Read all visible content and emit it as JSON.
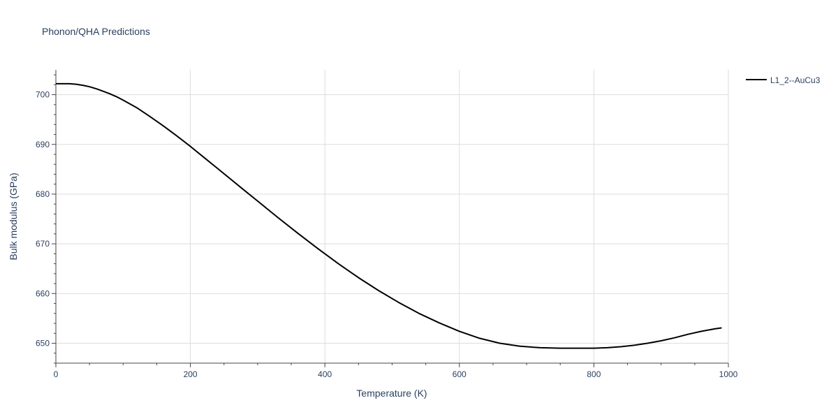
{
  "chart_data": {
    "type": "line",
    "title": "Phonon/QHA Predictions",
    "xlabel": "Temperature (K)",
    "ylabel": "Bulk modulus (GPa)",
    "xlim": [
      0,
      1000
    ],
    "ylim": [
      646,
      705
    ],
    "x_ticks": [
      0,
      200,
      400,
      600,
      800,
      1000
    ],
    "y_ticks": [
      650,
      660,
      670,
      680,
      690,
      700
    ],
    "x_tick_labels": [
      "0",
      "200",
      "400",
      "600",
      "800",
      "1000"
    ],
    "y_tick_labels": [
      "650",
      "660",
      "670",
      "680",
      "690",
      "700"
    ],
    "grid": true,
    "legend_position": "top-right",
    "series": [
      {
        "name": "L1_2--AuCu3",
        "color": "#000000",
        "x": [
          0,
          10,
          20,
          30,
          40,
          50,
          60,
          70,
          80,
          90,
          100,
          120,
          140,
          160,
          180,
          200,
          220,
          240,
          260,
          280,
          300,
          330,
          360,
          390,
          420,
          450,
          480,
          510,
          540,
          570,
          600,
          630,
          660,
          690,
          720,
          750,
          780,
          800,
          820,
          840,
          860,
          880,
          900,
          920,
          940,
          960,
          980,
          990
        ],
        "y": [
          702.2,
          702.2,
          702.2,
          702.1,
          701.9,
          701.6,
          701.2,
          700.7,
          700.2,
          699.6,
          698.9,
          697.4,
          695.6,
          693.7,
          691.7,
          689.6,
          687.4,
          685.2,
          683.0,
          680.8,
          678.6,
          675.3,
          672.1,
          669.0,
          666.0,
          663.2,
          660.6,
          658.2,
          656.0,
          654.1,
          652.4,
          651.0,
          650.0,
          649.4,
          649.1,
          649.0,
          649.0,
          649.0,
          649.1,
          649.3,
          649.6,
          650.0,
          650.5,
          651.1,
          651.8,
          652.4,
          652.9,
          653.1
        ]
      }
    ]
  }
}
